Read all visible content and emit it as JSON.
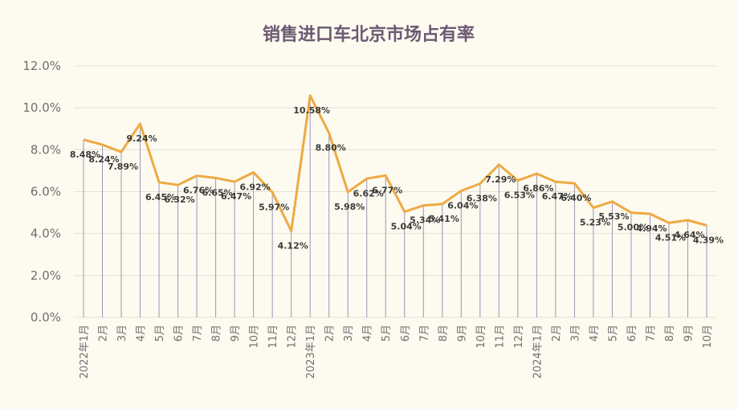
{
  "chart_data": {
    "type": "line",
    "title": "销售进口车北京市场占有率",
    "xlabel": "",
    "ylabel": "",
    "ylim": [
      0,
      12
    ],
    "yticks": [
      "0.0%",
      "2.0%",
      "4.0%",
      "6.0%",
      "8.0%",
      "10.0%",
      "12.0%"
    ],
    "grid": true,
    "legend": "none",
    "colors": {
      "line": "#eeaa44",
      "drop": "#9a96b8",
      "title": "#6b5a72",
      "background": "#fdfaf0"
    },
    "categories": [
      "2022年1月",
      "2月",
      "3月",
      "4月",
      "5月",
      "6月",
      "7月",
      "8月",
      "9月",
      "10月",
      "11月",
      "12月",
      "2023年1月",
      "2月",
      "3月",
      "4月",
      "5月",
      "6月",
      "7月",
      "8月",
      "9月",
      "10月",
      "11月",
      "12月",
      "2024年1月",
      "2月",
      "3月",
      "4月",
      "5月",
      "6月",
      "7月",
      "8月",
      "9月",
      "10月"
    ],
    "series": [
      {
        "values": [
          8.48,
          8.24,
          7.89,
          9.24,
          6.45,
          6.32,
          6.76,
          6.65,
          6.47,
          6.92,
          5.97,
          4.12,
          10.58,
          8.8,
          5.98,
          6.62,
          6.77,
          5.04,
          5.34,
          5.41,
          6.04,
          6.38,
          7.29,
          6.53,
          6.86,
          6.47,
          6.4,
          5.23,
          5.53,
          5.0,
          4.94,
          4.51,
          4.64,
          4.39
        ],
        "labels": [
          "8.48%",
          "8.24%",
          "7.89%",
          "9.24%",
          "6.45%",
          "6.32%",
          "6.76%",
          "6.65%",
          "6.47%",
          "6.92%",
          "5.97%",
          "4.12%",
          "10.58%",
          "8.80%",
          "5.98%",
          "6.62%",
          "6.77%",
          "5.04%",
          "5.34%",
          "5.41%",
          "6.04%",
          "6.38%",
          "7.29%",
          "6.53%",
          "6.86%",
          "6.47%",
          "6.40%",
          "5.23%",
          "5.53%",
          "5.00%",
          "4.94%",
          "4.51%",
          "4.64%",
          "4.39%"
        ]
      }
    ]
  }
}
